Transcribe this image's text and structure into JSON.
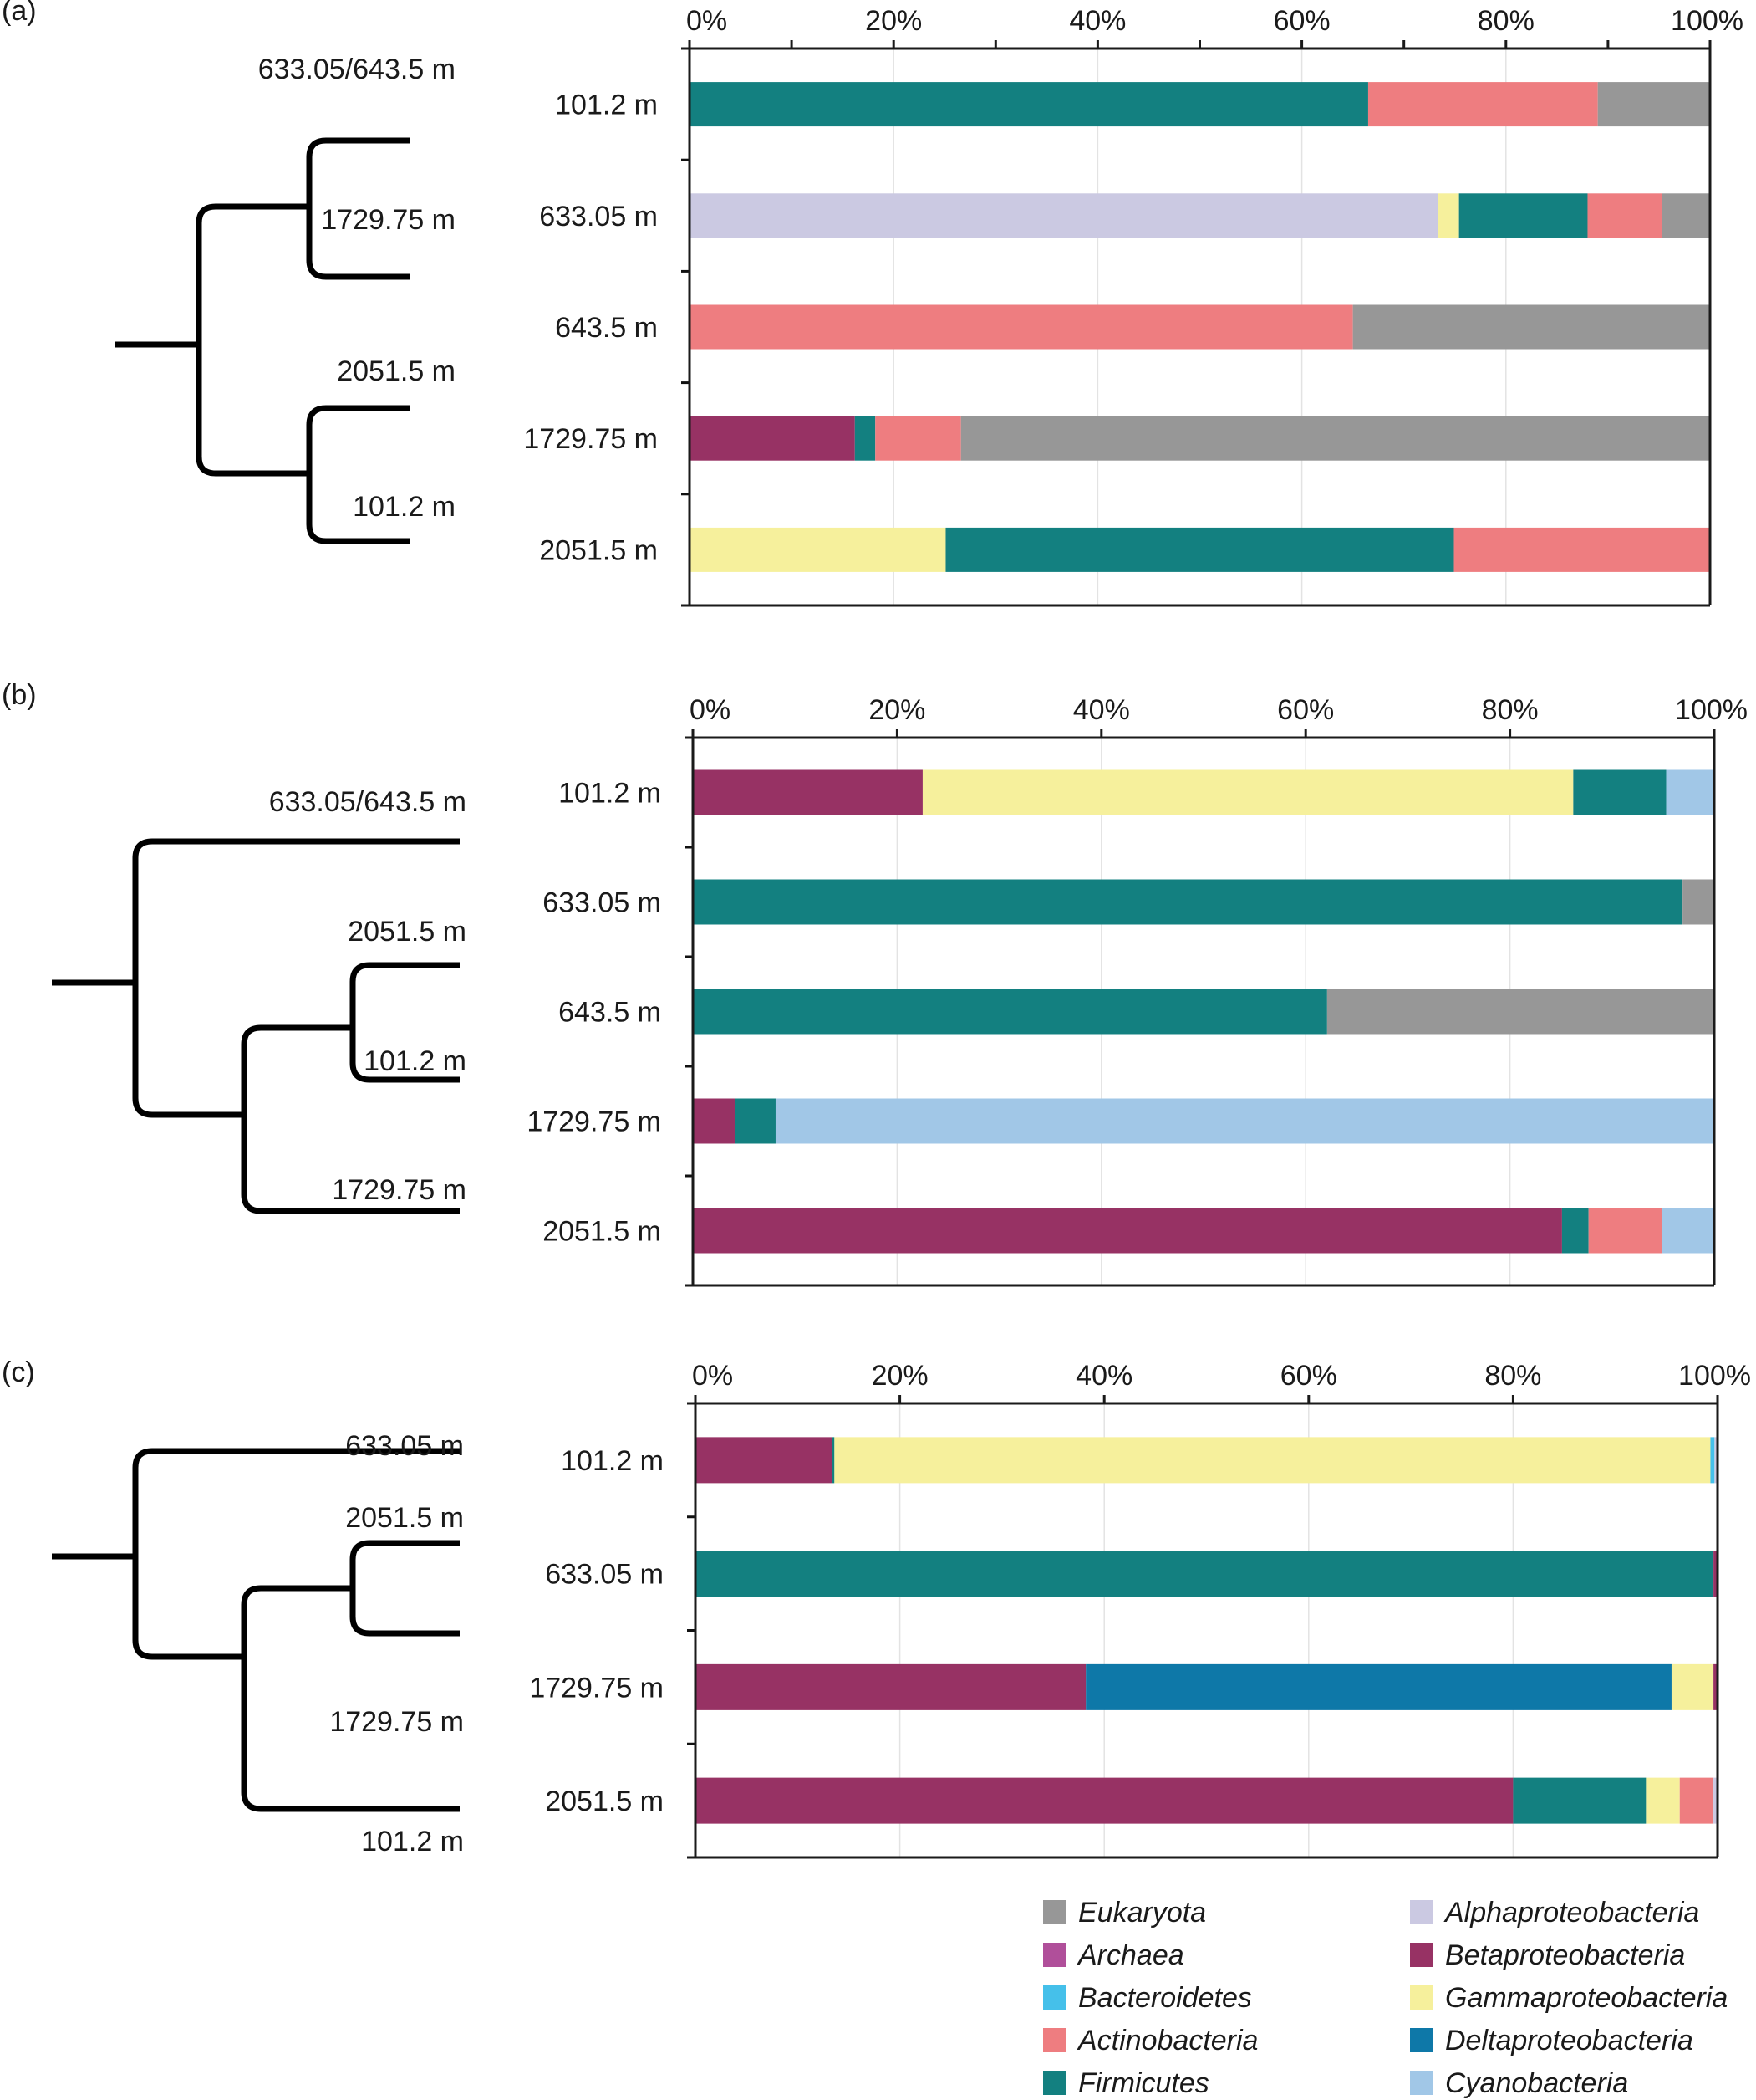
{
  "colors": {
    "Eukaryota": "#979797",
    "Archaea": "#b04f9a",
    "Bacteroidetes": "#45c0ea",
    "Actinobacteria": "#ee7d80",
    "Firmicutes": "#138080",
    "Alphaproteobacteria": "#cbc9e2",
    "Betaproteobacteria": "#973264",
    "Gammaproteobacteria": "#f6f09c",
    "Deltaproteobacteria": "#0e78a8",
    "Cyanobacteria": "#a1c7e7"
  },
  "legend": {
    "columns": [
      [
        "Eukaryota",
        "Archaea",
        "Bacteroidetes",
        "Actinobacteria",
        "Firmicutes"
      ],
      [
        "Alphaproteobacteria",
        "Betaproteobacteria",
        "Gammaproteobacteria",
        "Deltaproteobacteria",
        "Cyanobacteria"
      ]
    ]
  },
  "chart_data": [
    {
      "panel": "(a)",
      "type": "bar",
      "orientation": "horizontal-stacked-percent",
      "xlim": [
        0,
        100
      ],
      "xticks": [
        "0%",
        "20%",
        "40%",
        "60%",
        "80%",
        "100%"
      ],
      "minor_ticks_every": 10,
      "grid": true,
      "categories": [
        "101.2 m",
        "633.05 m",
        "643.5 m",
        "1729.75 m",
        "2051.5 m"
      ],
      "rows": [
        [
          [
            "Firmicutes",
            66.5
          ],
          [
            "Actinobacteria",
            22.5
          ],
          [
            "Eukaryota",
            11.0
          ]
        ],
        [
          [
            "Alphaproteobacteria",
            73.3
          ],
          [
            "Gammaproteobacteria",
            2.1
          ],
          [
            "Firmicutes",
            12.6
          ],
          [
            "Actinobacteria",
            7.3
          ],
          [
            "Eukaryota",
            4.7
          ]
        ],
        [
          [
            "Actinobacteria",
            65.0
          ],
          [
            "Eukaryota",
            35.0
          ]
        ],
        [
          [
            "Betaproteobacteria",
            16.2
          ],
          [
            "Firmicutes",
            2.0
          ],
          [
            "Actinobacteria",
            8.4
          ],
          [
            "Eukaryota",
            73.4
          ]
        ],
        [
          [
            "Gammaproteobacteria",
            25.1
          ],
          [
            "Firmicutes",
            49.8
          ],
          [
            "Actinobacteria",
            25.1
          ]
        ]
      ],
      "dendrogram": {
        "leaf_labels": [
          "633.05/643.5 m",
          "1729.75 m",
          "2051.5 m",
          "101.2 m"
        ],
        "topology": "((633.05/643.5 m, 1729.75 m), (2051.5 m, 101.2 m))"
      }
    },
    {
      "panel": "(b)",
      "type": "bar",
      "orientation": "horizontal-stacked-percent",
      "xlim": [
        0,
        100
      ],
      "xticks": [
        "0%",
        "20%",
        "40%",
        "60%",
        "80%",
        "100%"
      ],
      "grid": true,
      "categories": [
        "101.2 m",
        "633.05 m",
        "643.5 m",
        "1729.75 m",
        "2051.5 m"
      ],
      "rows": [
        [
          [
            "Betaproteobacteria",
            22.5
          ],
          [
            "Gammaproteobacteria",
            63.7
          ],
          [
            "Firmicutes",
            9.1
          ],
          [
            "Cyanobacteria",
            4.7
          ]
        ],
        [
          [
            "Firmicutes",
            96.9
          ],
          [
            "Eukaryota",
            3.1
          ]
        ],
        [
          [
            "Firmicutes",
            62.1
          ],
          [
            "Eukaryota",
            37.9
          ]
        ],
        [
          [
            "Betaproteobacteria",
            4.1
          ],
          [
            "Firmicutes",
            4.0
          ],
          [
            "Cyanobacteria",
            91.9
          ]
        ],
        [
          [
            "Betaproteobacteria",
            85.1
          ],
          [
            "Firmicutes",
            2.6
          ],
          [
            "Actinobacteria",
            7.2
          ],
          [
            "Cyanobacteria",
            5.1
          ]
        ]
      ],
      "dendrogram": {
        "leaf_labels": [
          "633.05/643.5 m",
          "2051.5 m",
          "101.2 m",
          "1729.75 m"
        ],
        "topology": "(633.05/643.5 m, ((2051.5 m, 101.2 m), 1729.75 m))"
      }
    },
    {
      "panel": "(c)",
      "type": "bar",
      "orientation": "horizontal-stacked-percent",
      "xlim": [
        0,
        100
      ],
      "xticks": [
        "0%",
        "20%",
        "40%",
        "60%",
        "80%",
        "100%"
      ],
      "grid": true,
      "categories": [
        "101.2 m",
        "633.05 m",
        "1729.75 m",
        "2051.5 m"
      ],
      "rows": [
        [
          [
            "Betaproteobacteria",
            13.4
          ],
          [
            "Firmicutes",
            0.2
          ],
          [
            "Gammaproteobacteria",
            85.7
          ],
          [
            "Bacteroidetes",
            0.4
          ],
          [
            "Alphaproteobacteria",
            0.3
          ]
        ],
        [
          [
            "Firmicutes",
            99.6
          ],
          [
            "Betaproteobacteria",
            0.4
          ]
        ],
        [
          [
            "Betaproteobacteria",
            38.2
          ],
          [
            "Deltaproteobacteria",
            57.3
          ],
          [
            "Gammaproteobacteria",
            4.1
          ],
          [
            "Betaproteobacteria",
            0.4
          ]
        ],
        [
          [
            "Betaproteobacteria",
            80.0
          ],
          [
            "Firmicutes",
            13.0
          ],
          [
            "Gammaproteobacteria",
            3.3
          ],
          [
            "Actinobacteria",
            3.3
          ],
          [
            "Alphaproteobacteria",
            0.4
          ]
        ]
      ],
      "dendrogram": {
        "leaf_labels": [
          "633.05 m",
          "2051.5 m",
          "1729.75 m",
          "101.2 m"
        ],
        "topology": "(633.05 m, ((2051.5 m, 1729.75 m), 101.2 m))"
      }
    }
  ]
}
